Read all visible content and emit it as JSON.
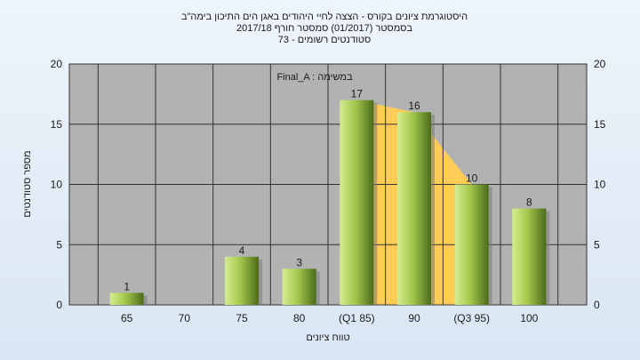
{
  "chart_data": {
    "type": "bar",
    "title_lines": [
      "היסטוגרמת ציונים בקורס - הצצה לחיי היהודים באגן הים התיכון בימה\"ב",
      "בסמסטר  (01/2017)  סמסטר חורף  2017/18",
      "סטודנטים רשומים - 73"
    ],
    "annotation": "Final_A : במשימה",
    "xlabel": "טווח ציונים",
    "ylabel": "מספר סטודנטים",
    "categories": [
      "65",
      "70",
      "75",
      "80",
      "(Q1 85)",
      "90",
      "(Q3 95)",
      "100"
    ],
    "values": [
      1,
      0,
      4,
      3,
      17,
      16,
      10,
      8
    ],
    "data_labels": [
      "1",
      "",
      "4",
      "3",
      "17",
      "16",
      "10",
      "8"
    ],
    "yticks": [
      "0",
      "5",
      "10",
      "15",
      "20"
    ],
    "ylim": [
      0,
      20
    ],
    "grid": true,
    "quartile_band": {
      "from_index": 4,
      "to_index": 6,
      "color": "#ffcc55"
    },
    "colors": {
      "plot_bg": "#b2b2b2",
      "bar_light": "#d7ec8f",
      "bar_mid": "#a3c84d",
      "bar_dark": "#4c6b1a",
      "grid": "#333333"
    }
  }
}
